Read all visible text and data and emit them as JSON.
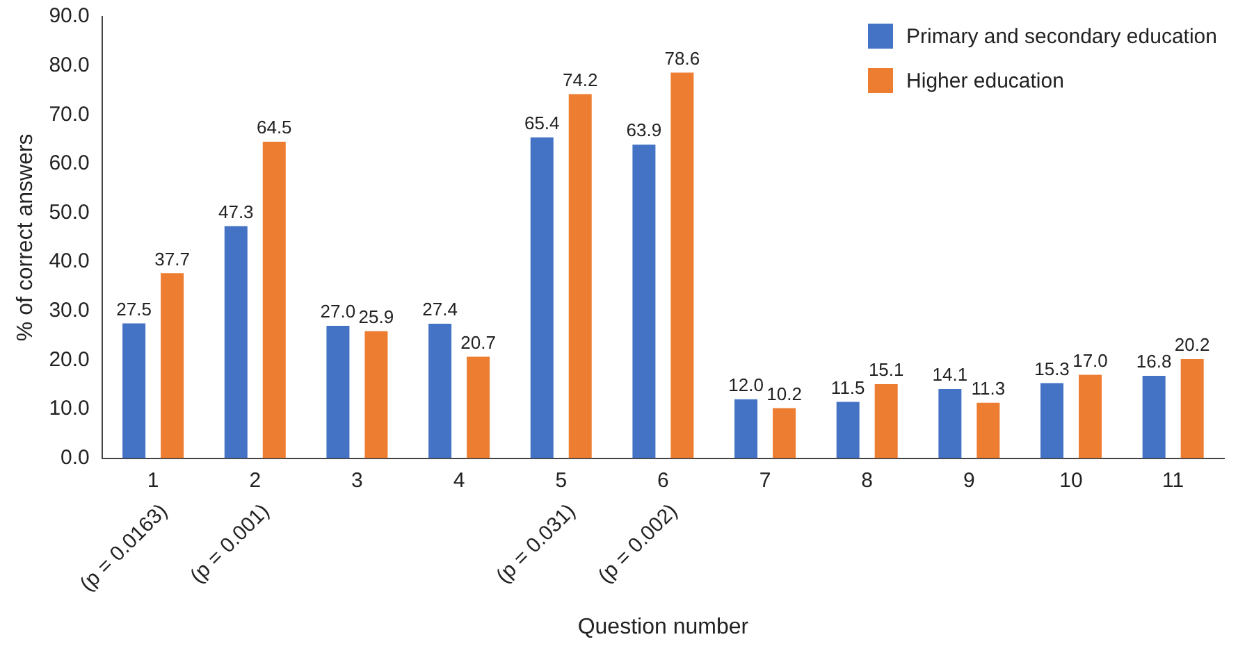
{
  "chart_data": {
    "type": "bar",
    "xlabel": "Question number",
    "ylabel": "% of correct answers",
    "categories": [
      "1\n(p = 0.0163)",
      "2\n(p = 0.001)",
      "3",
      "4",
      "5\n(p = 0.031)",
      "6\n(p = 0.002)",
      "7",
      "8",
      "9",
      "10",
      "11"
    ],
    "series": [
      {
        "name": "Primary and secondary education",
        "color": "#4472c4",
        "values": [
          27.5,
          47.3,
          27.0,
          27.4,
          65.4,
          63.9,
          12.0,
          11.5,
          14.1,
          15.3,
          16.8
        ],
        "value_labels": [
          "27.5",
          "47.3",
          "27.0",
          "27.4",
          "65.4",
          "63.9",
          "12.0",
          "11.5",
          "14.1",
          "15.3",
          "16.8"
        ]
      },
      {
        "name": "Higher education",
        "color": "#ed7d31",
        "values": [
          37.7,
          64.5,
          25.9,
          20.7,
          74.2,
          78.6,
          10.2,
          15.1,
          11.3,
          17.0,
          20.2
        ],
        "value_labels": [
          "37.7",
          "64.5",
          "25.9",
          "20.7",
          "74.2",
          "78.6",
          "10.2",
          "15.1",
          "11.3",
          "17.0",
          "20.2"
        ]
      }
    ],
    "ylim": [
      0,
      90
    ],
    "yticks": [
      {
        "value": 0,
        "label": "0.0"
      },
      {
        "value": 10,
        "label": "10.0"
      },
      {
        "value": 20,
        "label": "20.0"
      },
      {
        "value": 30,
        "label": "30.0"
      },
      {
        "value": 40,
        "label": "40.0"
      },
      {
        "value": 50,
        "label": "50.0"
      },
      {
        "value": 60,
        "label": "60.0"
      },
      {
        "value": 70,
        "label": "70.0"
      },
      {
        "value": 80,
        "label": "80.0"
      },
      {
        "value": 90,
        "label": "90.0"
      }
    ],
    "grid": false,
    "legend": "top right"
  }
}
